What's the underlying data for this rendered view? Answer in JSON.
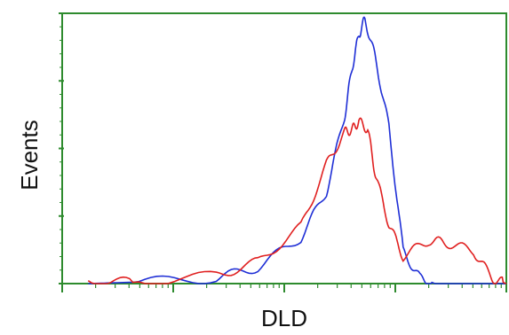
{
  "chart_data": {
    "type": "line",
    "title": "",
    "xlabel": "DLD",
    "ylabel": "Events",
    "x_scale": "log",
    "xlim": [
      0,
      1000
    ],
    "ylim": [
      0,
      1
    ],
    "grid": false,
    "legend": "none",
    "frame_color": "#2e8b2e",
    "series": [
      {
        "color": "#1f2fd6",
        "x": [
          0.5,
          2,
          10,
          20,
          40,
          60,
          80,
          90,
          100,
          110,
          130,
          160,
          200,
          260,
          330,
          1000
        ],
        "y": [
          0.0,
          0.005,
          0.02,
          0.06,
          0.17,
          0.34,
          0.62,
          0.8,
          0.92,
          0.98,
          0.83,
          0.58,
          0.12,
          0.02,
          0.0,
          0.0
        ]
      },
      {
        "color": "#e02020",
        "x": [
          0.5,
          2,
          10,
          20,
          40,
          60,
          80,
          90,
          100,
          115,
          130,
          160,
          200,
          300,
          400,
          600,
          800,
          1000
        ],
        "y": [
          0.01,
          0.005,
          0.03,
          0.08,
          0.21,
          0.44,
          0.56,
          0.57,
          0.6,
          0.57,
          0.4,
          0.22,
          0.1,
          0.16,
          0.15,
          0.12,
          0.02,
          0.0
        ]
      }
    ]
  }
}
